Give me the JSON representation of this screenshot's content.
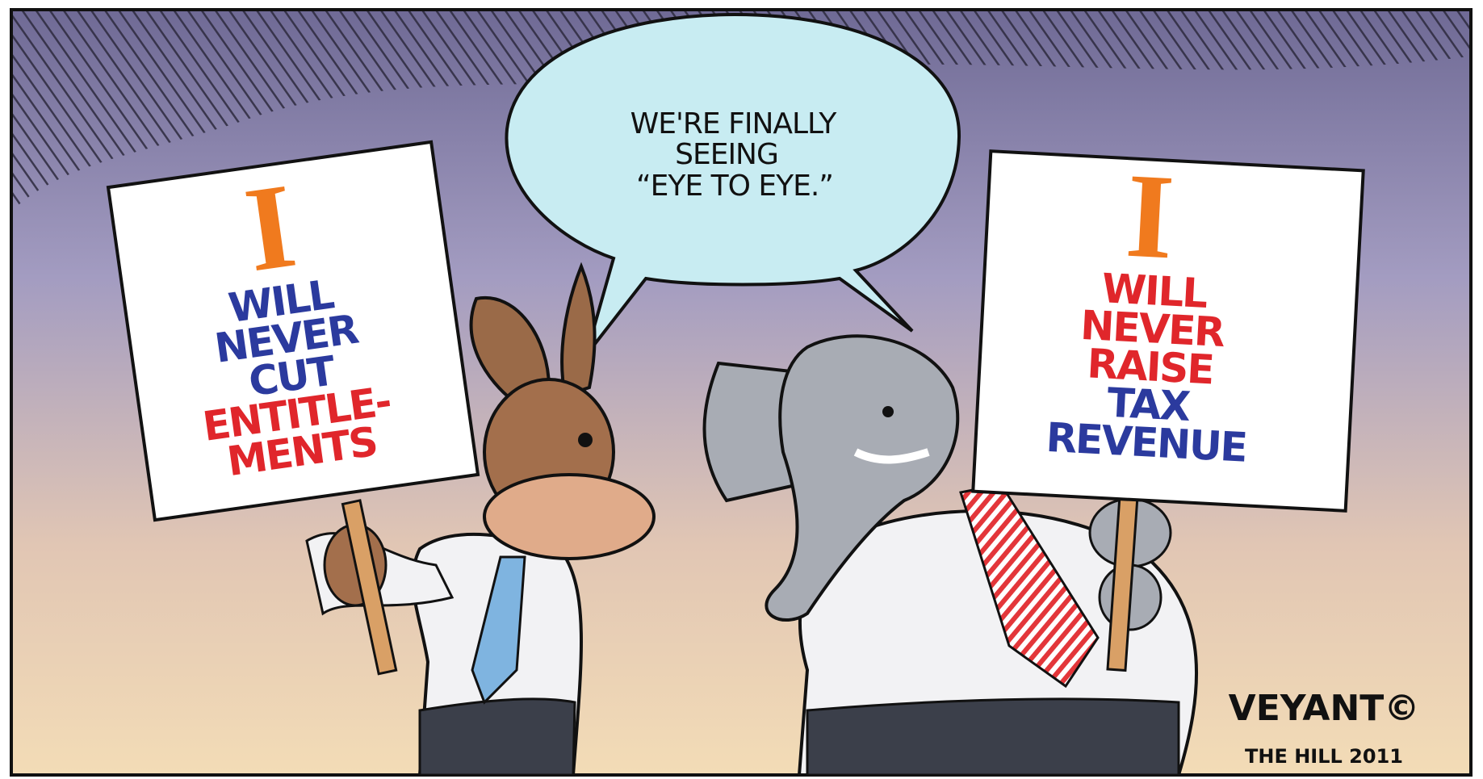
{
  "speech_bubble": {
    "lines": [
      "WE'RE FINALLY",
      "SEEING"
    ],
    "quote": "“EYE TO EYE.”"
  },
  "left_sign": {
    "pronoun": "I",
    "blue_lines": [
      "WILL",
      "NEVER",
      "CUT"
    ],
    "red_lines": [
      "ENTITLE-",
      "MENTS"
    ]
  },
  "right_sign": {
    "pronoun": "I",
    "red_lines": [
      "WILL",
      "NEVER",
      "RAISE"
    ],
    "blue_lines": [
      "TAX",
      "REVENUE"
    ]
  },
  "signature": {
    "artist": "VEYANT©",
    "source": "THE HILL 2011"
  }
}
